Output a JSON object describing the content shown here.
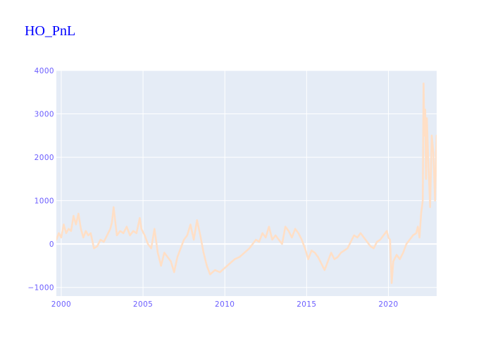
{
  "chart_data": {
    "type": "line",
    "title": "HO_PnL",
    "xlabel": "",
    "ylabel": "",
    "x_range": [
      1999.7,
      2022.95
    ],
    "ylim": [
      -1200,
      4000
    ],
    "x_ticks": [
      2000,
      2005,
      2010,
      2015,
      2020
    ],
    "x_tick_labels": [
      "2000",
      "2005",
      "2010",
      "2015",
      "2020"
    ],
    "y_ticks": [
      4000,
      3000,
      2000,
      1000,
      0,
      -1000
    ],
    "y_tick_labels": [
      "4000",
      "3000",
      "2000",
      "1000",
      "0",
      "−1000"
    ],
    "grid": true,
    "legend": "none",
    "colors": {
      "plot_bg": "#e5ecf6",
      "grid": "#ffffff",
      "line": "#ffdfc6",
      "title": "#0000ff",
      "ticks": "#6a5cff"
    },
    "series": [
      {
        "x": [
          1999.7,
          1999.85,
          2000.0,
          2000.15,
          2000.3,
          2000.45,
          2000.6,
          2000.75,
          2000.9,
          2001.05,
          2001.2,
          2001.35,
          2001.5,
          2001.65,
          2001.8,
          2002.0,
          2002.2,
          2002.4,
          2002.6,
          2002.8,
          2003.0,
          2003.1,
          2003.2,
          2003.4,
          2003.6,
          2003.8,
          2004.0,
          2004.2,
          2004.4,
          2004.6,
          2004.8,
          2004.9,
          2005.1,
          2005.3,
          2005.5,
          2005.7,
          2005.9,
          2006.1,
          2006.3,
          2006.5,
          2006.7,
          2006.9,
          2007.1,
          2007.3,
          2007.5,
          2007.7,
          2007.9,
          2008.1,
          2008.3,
          2008.5,
          2008.7,
          2008.9,
          2009.1,
          2009.4,
          2009.7,
          2010.0,
          2010.3,
          2010.6,
          2010.9,
          2011.2,
          2011.5,
          2011.7,
          2011.9,
          2012.1,
          2012.3,
          2012.5,
          2012.7,
          2012.9,
          2013.1,
          2013.3,
          2013.5,
          2013.7,
          2013.9,
          2014.1,
          2014.3,
          2014.5,
          2014.7,
          2014.9,
          2015.1,
          2015.3,
          2015.5,
          2015.7,
          2015.9,
          2016.1,
          2016.3,
          2016.5,
          2016.7,
          2016.9,
          2017.1,
          2017.3,
          2017.5,
          2017.7,
          2017.9,
          2018.1,
          2018.3,
          2018.5,
          2018.7,
          2018.9,
          2019.1,
          2019.3,
          2019.5,
          2019.7,
          2019.9,
          2020.0,
          2020.1,
          2020.2,
          2020.3,
          2020.5,
          2020.7,
          2020.9,
          2021.1,
          2021.3,
          2021.5,
          2021.7,
          2021.8,
          2021.9,
          2022.0,
          2022.1,
          2022.15,
          2022.2,
          2022.25,
          2022.3,
          2022.35,
          2022.45,
          2022.55,
          2022.65,
          2022.75,
          2022.85,
          2022.95
        ],
        "y": [
          100,
          250,
          150,
          450,
          250,
          350,
          300,
          650,
          450,
          700,
          350,
          150,
          300,
          200,
          250,
          -100,
          -50,
          100,
          50,
          200,
          350,
          500,
          850,
          200,
          300,
          250,
          400,
          200,
          300,
          250,
          600,
          350,
          200,
          0,
          -100,
          350,
          -200,
          -500,
          -200,
          -300,
          -400,
          -650,
          -300,
          -100,
          100,
          200,
          450,
          100,
          550,
          200,
          -200,
          -500,
          -700,
          -600,
          -650,
          -550,
          -450,
          -350,
          -300,
          -200,
          -100,
          0,
          100,
          50,
          250,
          150,
          400,
          100,
          200,
          100,
          0,
          400,
          300,
          150,
          350,
          250,
          100,
          -100,
          -350,
          -150,
          -200,
          -300,
          -450,
          -600,
          -400,
          -200,
          -350,
          -300,
          -200,
          -150,
          -100,
          50,
          200,
          150,
          250,
          150,
          50,
          -50,
          -100,
          50,
          100,
          200,
          300,
          150,
          100,
          -900,
          -400,
          -250,
          -350,
          -200,
          0,
          100,
          200,
          250,
          400,
          150,
          700,
          1000,
          3700,
          2500,
          3100,
          1500,
          2900,
          1800,
          850,
          2500,
          2100,
          1000,
          2500
        ]
      }
    ]
  }
}
